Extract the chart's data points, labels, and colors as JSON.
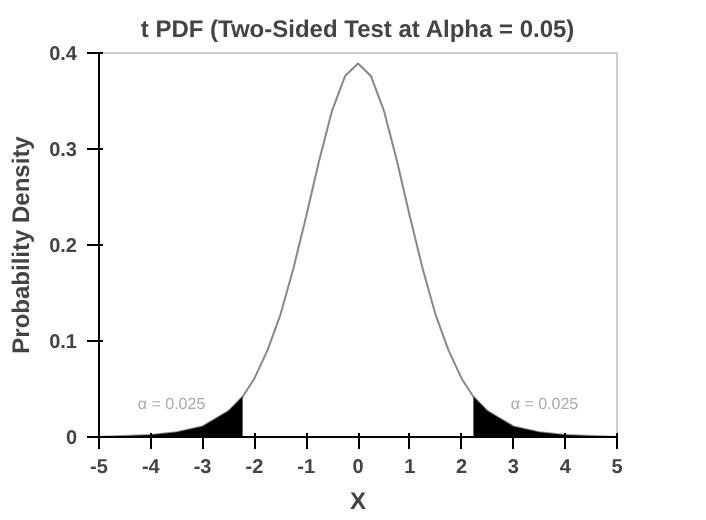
{
  "chart_data": {
    "type": "line",
    "title": "t PDF (Two-Sided Test at Alpha = 0.05)",
    "xlabel": "X",
    "ylabel": "Probability Density",
    "xlim": [
      -5,
      5
    ],
    "ylim": [
      0,
      0.4
    ],
    "xticks": [
      -5,
      -4,
      -3,
      -2,
      -1,
      0,
      1,
      2,
      3,
      4,
      5
    ],
    "yticks": [
      0,
      0.1,
      0.2,
      0.3,
      0.4
    ],
    "grid": false,
    "series": [
      {
        "color": "#888888",
        "x": [
          -5,
          -4.5,
          -4,
          -3.5,
          -3,
          -2.5,
          -2.228,
          -2,
          -1.75,
          -1.5,
          -1.25,
          -1,
          -0.75,
          -0.5,
          -0.25,
          0,
          0.25,
          0.5,
          0.75,
          1,
          1.25,
          1.5,
          1.75,
          2,
          2.228,
          2.5,
          3,
          3.5,
          4,
          4.5,
          5
        ],
        "values": [
          0.0,
          0.001,
          0.002,
          0.005,
          0.011,
          0.027,
          0.042,
          0.061,
          0.09,
          0.127,
          0.175,
          0.23,
          0.288,
          0.34,
          0.376,
          0.389,
          0.376,
          0.34,
          0.288,
          0.23,
          0.175,
          0.127,
          0.09,
          0.061,
          0.042,
          0.027,
          0.011,
          0.005,
          0.002,
          0.001,
          0.0
        ]
      },
      {
        "type": "area",
        "color": "#000000",
        "x": [
          -5,
          -4.5,
          -4,
          -3.5,
          -3,
          -2.5,
          -2.228
        ],
        "values": [
          0.0,
          0.001,
          0.002,
          0.005,
          0.011,
          0.027,
          0.042
        ]
      },
      {
        "type": "area",
        "color": "#000000",
        "x": [
          2.228,
          2.5,
          3,
          3.5,
          4,
          4.5,
          5
        ],
        "values": [
          0.042,
          0.027,
          0.011,
          0.005,
          0.002,
          0.001,
          0.0
        ]
      }
    ],
    "annotations": [
      "α = 0.025",
      "α = 0.025"
    ]
  }
}
